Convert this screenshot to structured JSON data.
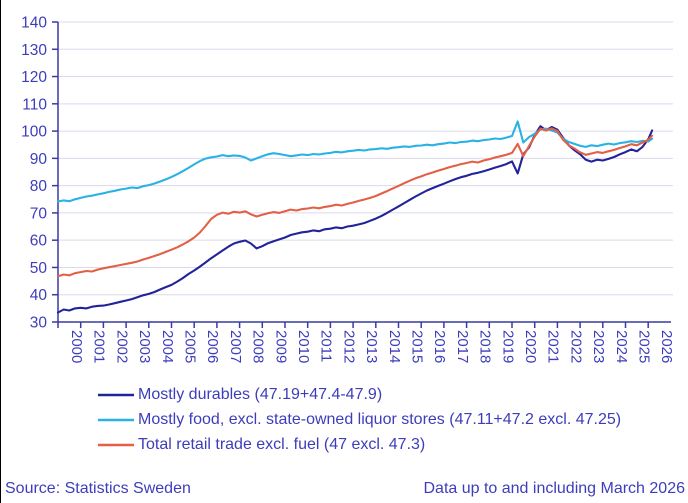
{
  "colors": {
    "text_accent": "#3d3dbb",
    "axis": "#3a3aa5",
    "gridline": "#dadaeb",
    "frame_border": "#000000",
    "background": "#ffffff",
    "series_durables": "#22229b",
    "series_food": "#29b2e5",
    "series_total": "#e35f46"
  },
  "footer": {
    "source": "Source: Statistics Sweden",
    "note": "Data up to and including March 2026"
  },
  "chart_data": {
    "type": "line",
    "title": "",
    "xlabel": "",
    "ylabel": "",
    "grid": "horizontal",
    "legend_position": "bottom",
    "ylim": [
      30,
      140
    ],
    "yticks": [
      30,
      40,
      50,
      60,
      70,
      80,
      90,
      100,
      110,
      120,
      130,
      140
    ],
    "xtick_years": [
      2000,
      2001,
      2002,
      2003,
      2004,
      2005,
      2006,
      2007,
      2008,
      2009,
      2010,
      2011,
      2012,
      2013,
      2014,
      2015,
      2016,
      2017,
      2018,
      2019,
      2020,
      2021,
      2022,
      2023,
      2024,
      2025,
      2026
    ],
    "x_frequency": "quarterly (decimal years), last point = March 2026",
    "x": [
      2000,
      2000.25,
      2000.5,
      2000.75,
      2001,
      2001.25,
      2001.5,
      2001.75,
      2002,
      2002.25,
      2002.5,
      2002.75,
      2003,
      2003.25,
      2003.5,
      2003.75,
      2004,
      2004.25,
      2004.5,
      2004.75,
      2005,
      2005.25,
      2005.5,
      2005.75,
      2006,
      2006.25,
      2006.5,
      2006.75,
      2007,
      2007.25,
      2007.5,
      2007.75,
      2008,
      2008.25,
      2008.5,
      2008.75,
      2009,
      2009.25,
      2009.5,
      2009.75,
      2010,
      2010.25,
      2010.5,
      2010.75,
      2011,
      2011.25,
      2011.5,
      2011.75,
      2012,
      2012.25,
      2012.5,
      2012.75,
      2013,
      2013.25,
      2013.5,
      2013.75,
      2014,
      2014.25,
      2014.5,
      2014.75,
      2015,
      2015.25,
      2015.5,
      2015.75,
      2016,
      2016.25,
      2016.5,
      2016.75,
      2017,
      2017.25,
      2017.5,
      2017.75,
      2018,
      2018.25,
      2018.5,
      2018.75,
      2019,
      2019.25,
      2019.5,
      2019.75,
      2020,
      2020.25,
      2020.5,
      2020.75,
      2021,
      2021.25,
      2021.5,
      2021.75,
      2022,
      2022.25,
      2022.5,
      2022.75,
      2023,
      2023.25,
      2023.5,
      2023.75,
      2024,
      2024.25,
      2024.5,
      2024.75,
      2025,
      2025.25,
      2025.5,
      2025.75,
      2026,
      2026.17
    ],
    "series": [
      {
        "name": "Mostly durables (47.19+47.4-47.9)",
        "color": "#22229b",
        "values": [
          33.5,
          34.6,
          34.2,
          35.0,
          35.2,
          35.0,
          35.6,
          35.9,
          36.0,
          36.4,
          36.9,
          37.4,
          37.9,
          38.4,
          39.1,
          39.8,
          40.3,
          41.0,
          41.9,
          42.8,
          43.6,
          44.8,
          46.1,
          47.6,
          48.9,
          50.3,
          51.8,
          53.4,
          54.8,
          56.2,
          57.6,
          58.8,
          59.4,
          59.9,
          58.8,
          57.0,
          57.8,
          58.9,
          59.6,
          60.3,
          61.0,
          61.9,
          62.4,
          62.9,
          63.1,
          63.6,
          63.3,
          64.0,
          64.2,
          64.7,
          64.4,
          65.0,
          65.3,
          65.8,
          66.3,
          67.1,
          67.9,
          68.9,
          70.0,
          71.2,
          72.4,
          73.6,
          74.8,
          76.0,
          77.1,
          78.2,
          79.1,
          79.9,
          80.7,
          81.6,
          82.4,
          83.1,
          83.6,
          84.3,
          84.7,
          85.3,
          85.9,
          86.6,
          87.2,
          87.9,
          88.9,
          84.5,
          91.5,
          94.0,
          98.5,
          101.8,
          100.3,
          101.5,
          100.5,
          97.5,
          94.8,
          93.0,
          91.5,
          89.5,
          88.8,
          89.5,
          89.2,
          89.8,
          90.5,
          91.5,
          92.3,
          93.3,
          92.6,
          94.2,
          97.0,
          100.2
        ]
      },
      {
        "name": "Mostly food, excl. state-owned liquor stores (47.11+47.2 excl. 47.25)",
        "color": "#29b2e5",
        "values": [
          74.2,
          74.6,
          74.3,
          75.0,
          75.5,
          76.0,
          76.3,
          76.8,
          77.2,
          77.7,
          78.1,
          78.6,
          78.9,
          79.3,
          79.1,
          79.8,
          80.2,
          80.8,
          81.5,
          82.3,
          83.2,
          84.2,
          85.3,
          86.5,
          87.8,
          89.0,
          89.9,
          90.4,
          90.7,
          91.2,
          90.8,
          91.1,
          90.9,
          90.3,
          89.2,
          90.0,
          90.8,
          91.5,
          91.9,
          91.6,
          91.2,
          90.8,
          91.1,
          91.4,
          91.2,
          91.6,
          91.4,
          91.8,
          92.0,
          92.4,
          92.2,
          92.6,
          92.8,
          93.1,
          92.9,
          93.3,
          93.4,
          93.7,
          93.5,
          93.9,
          94.1,
          94.4,
          94.2,
          94.6,
          94.7,
          95.0,
          94.8,
          95.2,
          95.4,
          95.8,
          95.6,
          96.0,
          96.1,
          96.5,
          96.3,
          96.7,
          96.9,
          97.3,
          97.1,
          97.6,
          98.2,
          103.5,
          95.8,
          97.8,
          99.0,
          100.6,
          100.9,
          100.2,
          99.5,
          97.2,
          96.0,
          95.3,
          94.6,
          94.2,
          94.8,
          94.5,
          95.0,
          95.4,
          95.1,
          95.6,
          95.9,
          96.3,
          96.0,
          96.4,
          96.2,
          97.2
        ]
      },
      {
        "name": "Total retail trade excl. fuel (47 excl. 47.3)",
        "color": "#e35f46",
        "values": [
          46.8,
          47.4,
          47.1,
          47.9,
          48.3,
          48.7,
          48.5,
          49.2,
          49.7,
          50.1,
          50.5,
          50.9,
          51.3,
          51.7,
          52.2,
          52.9,
          53.5,
          54.2,
          54.9,
          55.7,
          56.5,
          57.4,
          58.4,
          59.6,
          61.0,
          62.8,
          65.2,
          67.8,
          69.3,
          70.1,
          69.7,
          70.4,
          70.1,
          70.6,
          69.5,
          68.7,
          69.3,
          69.9,
          70.3,
          70.0,
          70.6,
          71.2,
          70.9,
          71.4,
          71.6,
          72.0,
          71.7,
          72.2,
          72.5,
          73.0,
          72.7,
          73.3,
          73.8,
          74.4,
          74.9,
          75.5,
          76.2,
          77.1,
          78.0,
          79.0,
          79.9,
          80.9,
          81.8,
          82.7,
          83.4,
          84.2,
          84.8,
          85.5,
          86.1,
          86.8,
          87.3,
          87.9,
          88.3,
          88.8,
          88.5,
          89.2,
          89.7,
          90.3,
          90.8,
          91.3,
          92.0,
          95.3,
          90.8,
          94.5,
          98.0,
          100.9,
          100.2,
          101.0,
          100.0,
          96.8,
          94.8,
          93.6,
          92.2,
          91.3,
          91.8,
          92.3,
          92.0,
          92.6,
          93.1,
          93.8,
          94.4,
          95.2,
          94.8,
          95.8,
          96.8,
          98.3
        ]
      }
    ]
  }
}
